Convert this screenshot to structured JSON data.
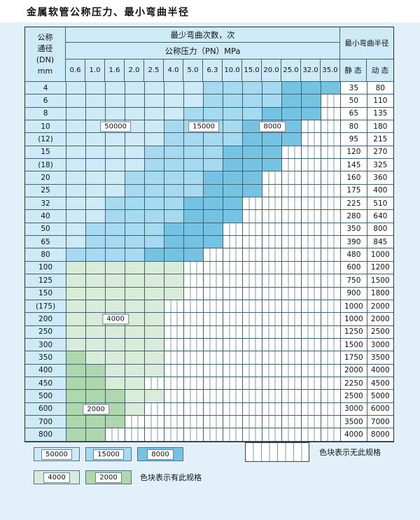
{
  "title": "金属软管公称压力、最小弯曲半径",
  "header": {
    "dn_lines": [
      "公称",
      "通径",
      "(DN)",
      "mm"
    ],
    "cycles_title": "最少弯曲次数，次",
    "pressure_title": "公称压力（PN）MPa",
    "radius_title": "最小弯曲半径",
    "static_label": "静 态",
    "dynamic_label": "动 态"
  },
  "table": {
    "pressures": [
      "0.6",
      "1.0",
      "1.6",
      "2.0",
      "2.5",
      "4.0",
      "5.0",
      "6.3",
      "10.0",
      "15.0",
      "20.0",
      "25.0",
      "32.0",
      "35.0"
    ],
    "rows": [
      {
        "dn": "4",
        "static": "35",
        "dynamic": "80",
        "bands": [
          [
            "b1",
            0,
            6
          ],
          [
            "b2",
            7,
            10
          ],
          [
            "b3",
            11,
            13
          ]
        ]
      },
      {
        "dn": "6",
        "static": "50",
        "dynamic": "110",
        "bands": [
          [
            "b1",
            0,
            6
          ],
          [
            "b2",
            7,
            10
          ],
          [
            "b3",
            11,
            12
          ]
        ]
      },
      {
        "dn": "8",
        "static": "65",
        "dynamic": "135",
        "bands": [
          [
            "b1",
            0,
            5
          ],
          [
            "b2",
            6,
            9
          ],
          [
            "b3",
            10,
            12
          ]
        ]
      },
      {
        "dn": "10",
        "static": "80",
        "dynamic": "180",
        "bands": [
          [
            "b1",
            0,
            4
          ],
          [
            "b2",
            5,
            8
          ],
          [
            "b3",
            9,
            11
          ]
        ],
        "labels": {
          "b1": "50000",
          "b2": "15000",
          "b3": "8000"
        }
      },
      {
        "dn": "(12)",
        "static": "95",
        "dynamic": "215",
        "bands": [
          [
            "b1",
            0,
            4
          ],
          [
            "b2",
            5,
            8
          ],
          [
            "b3",
            9,
            11
          ]
        ]
      },
      {
        "dn": "15",
        "static": "120",
        "dynamic": "270",
        "bands": [
          [
            "b1",
            0,
            3
          ],
          [
            "b2",
            4,
            7
          ],
          [
            "b3",
            8,
            10
          ]
        ]
      },
      {
        "dn": "(18)",
        "static": "145",
        "dynamic": "325",
        "bands": [
          [
            "b1",
            0,
            3
          ],
          [
            "b2",
            4,
            7
          ],
          [
            "b3",
            8,
            10
          ]
        ]
      },
      {
        "dn": "20",
        "static": "160",
        "dynamic": "360",
        "bands": [
          [
            "b1",
            0,
            2
          ],
          [
            "b2",
            3,
            6
          ],
          [
            "b3",
            7,
            9
          ]
        ]
      },
      {
        "dn": "25",
        "static": "175",
        "dynamic": "400",
        "bands": [
          [
            "b1",
            0,
            2
          ],
          [
            "b2",
            3,
            6
          ],
          [
            "b3",
            7,
            9
          ]
        ]
      },
      {
        "dn": "32",
        "static": "225",
        "dynamic": "510",
        "bands": [
          [
            "b1",
            0,
            1
          ],
          [
            "b2",
            2,
            5
          ],
          [
            "b3",
            6,
            8
          ]
        ]
      },
      {
        "dn": "40",
        "static": "280",
        "dynamic": "640",
        "bands": [
          [
            "b1",
            0,
            1
          ],
          [
            "b2",
            2,
            5
          ],
          [
            "b3",
            6,
            8
          ]
        ]
      },
      {
        "dn": "50",
        "static": "350",
        "dynamic": "800",
        "bands": [
          [
            "b1",
            0,
            0
          ],
          [
            "b2",
            1,
            4
          ],
          [
            "b3",
            5,
            7
          ]
        ]
      },
      {
        "dn": "65",
        "static": "390",
        "dynamic": "845",
        "bands": [
          [
            "b1",
            0,
            0
          ],
          [
            "b2",
            1,
            4
          ],
          [
            "b3",
            5,
            7
          ]
        ]
      },
      {
        "dn": "80",
        "static": "480",
        "dynamic": "1000",
        "bands": [
          [
            "b2",
            0,
            3
          ],
          [
            "b3",
            4,
            6
          ]
        ]
      },
      {
        "dn": "100",
        "static": "600",
        "dynamic": "1200",
        "bands": [
          [
            "g1",
            0,
            5
          ]
        ]
      },
      {
        "dn": "125",
        "static": "750",
        "dynamic": "1500",
        "bands": [
          [
            "g1",
            0,
            5
          ]
        ]
      },
      {
        "dn": "150",
        "static": "900",
        "dynamic": "1800",
        "bands": [
          [
            "g1",
            0,
            5
          ]
        ]
      },
      {
        "dn": "(175)",
        "static": "1000",
        "dynamic": "2000",
        "bands": [
          [
            "g1",
            0,
            4
          ]
        ]
      },
      {
        "dn": "200",
        "static": "1000",
        "dynamic": "2000",
        "bands": [
          [
            "g1",
            0,
            4
          ]
        ],
        "labels": {
          "g1": "4000"
        }
      },
      {
        "dn": "250",
        "static": "1250",
        "dynamic": "2500",
        "bands": [
          [
            "g1",
            0,
            4
          ]
        ]
      },
      {
        "dn": "300",
        "static": "1500",
        "dynamic": "3000",
        "bands": [
          [
            "g1",
            0,
            4
          ]
        ]
      },
      {
        "dn": "350",
        "static": "1750",
        "dynamic": "3500",
        "bands": [
          [
            "g2",
            0,
            0
          ],
          [
            "g1",
            1,
            4
          ]
        ]
      },
      {
        "dn": "400",
        "static": "2000",
        "dynamic": "4000",
        "bands": [
          [
            "g2",
            0,
            1
          ],
          [
            "g1",
            2,
            4
          ]
        ]
      },
      {
        "dn": "450",
        "static": "2250",
        "dynamic": "4500",
        "bands": [
          [
            "g2",
            0,
            1
          ],
          [
            "g1",
            2,
            3
          ]
        ]
      },
      {
        "dn": "500",
        "static": "2500",
        "dynamic": "5000",
        "bands": [
          [
            "g2",
            0,
            2
          ],
          [
            "g1",
            3,
            4
          ]
        ]
      },
      {
        "dn": "600",
        "static": "3000",
        "dynamic": "6000",
        "bands": [
          [
            "g2",
            0,
            2
          ],
          [
            "g1",
            3,
            3
          ]
        ],
        "labels": {
          "g2": "2000"
        }
      },
      {
        "dn": "700",
        "static": "3500",
        "dynamic": "7000",
        "bands": [
          [
            "g2",
            0,
            2
          ]
        ]
      },
      {
        "dn": "800",
        "static": "4000",
        "dynamic": "8000",
        "bands": [
          [
            "g2",
            0,
            1
          ]
        ]
      }
    ]
  },
  "legend": {
    "row1": [
      {
        "label": "50000",
        "cls": "b1"
      },
      {
        "label": "15000",
        "cls": "b2"
      },
      {
        "label": "8000",
        "cls": "b3"
      }
    ],
    "row2": [
      {
        "label": "4000",
        "cls": "g1"
      },
      {
        "label": "2000",
        "cls": "g2"
      }
    ],
    "has_spec_text": "色块表示有此规格",
    "no_spec_text": "色块表示无此规格"
  },
  "colors": {
    "c50000": "#cfeaf7",
    "c15000": "#a6daf0",
    "c8000": "#74c3e3",
    "c4000": "#d9ecd9",
    "c2000": "#aed7ae",
    "header": "#cfeaf7",
    "panel": "#e1f0f9",
    "grid": "#44616f"
  }
}
